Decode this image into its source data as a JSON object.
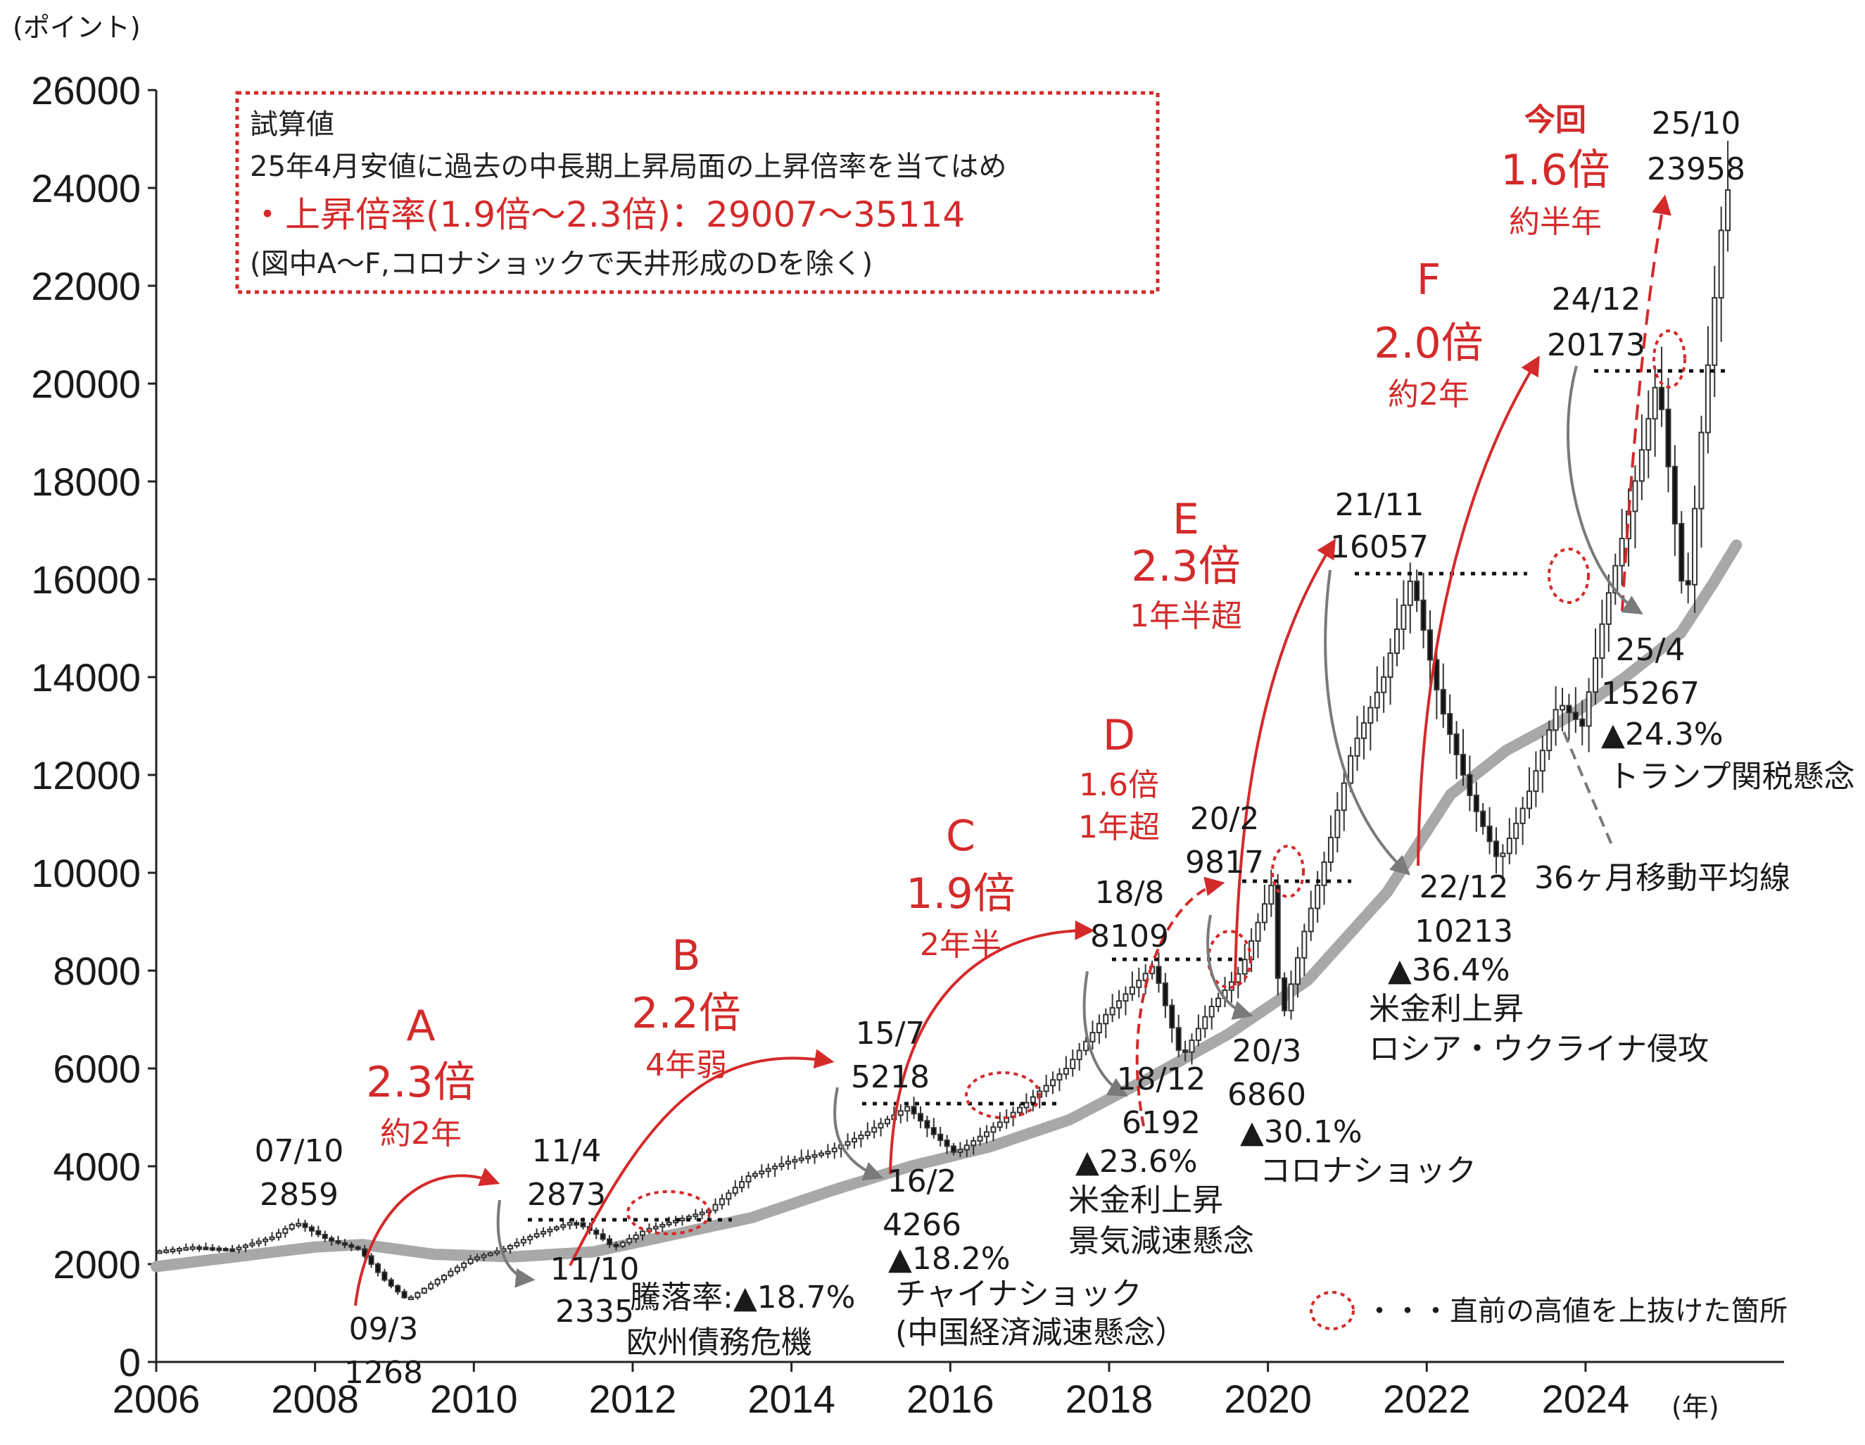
{
  "colors": {
    "accent_red": "#d42a2a",
    "ma_gray": "#a8a8a8",
    "arrow_gray": "#7a7a7a",
    "candle_black": "#111111"
  },
  "chart_data": {
    "type": "candlestick",
    "ylabel": "(ポイント)",
    "xlabel": "(年)",
    "ylim": [
      0,
      26000
    ],
    "xlim": [
      2006,
      2026.5
    ],
    "y_ticks": [
      0,
      2000,
      4000,
      6000,
      8000,
      10000,
      12000,
      14000,
      16000,
      18000,
      20000,
      22000,
      24000,
      26000
    ],
    "x_ticks": [
      2006,
      2008,
      2010,
      2012,
      2014,
      2016,
      2018,
      2020,
      2022,
      2024
    ],
    "grid": false,
    "series": [
      {
        "name": "",
        "kind": "price",
        "points": [
          {
            "x": 2006.0,
            "y": 2250
          },
          {
            "x": 2006.5,
            "y": 2350
          },
          {
            "x": 2007.0,
            "y": 2300
          },
          {
            "x": 2007.5,
            "y": 2550
          },
          {
            "x": 2007.8,
            "y": 2859
          },
          {
            "x": 2008.2,
            "y": 2500
          },
          {
            "x": 2008.6,
            "y": 2300
          },
          {
            "x": 2008.9,
            "y": 1700
          },
          {
            "x": 2009.2,
            "y": 1268
          },
          {
            "x": 2009.6,
            "y": 1700
          },
          {
            "x": 2010.0,
            "y": 2100
          },
          {
            "x": 2010.4,
            "y": 2300
          },
          {
            "x": 2010.8,
            "y": 2600
          },
          {
            "x": 2011.3,
            "y": 2873
          },
          {
            "x": 2011.6,
            "y": 2600
          },
          {
            "x": 2011.8,
            "y": 2335
          },
          {
            "x": 2012.2,
            "y": 2700
          },
          {
            "x": 2012.6,
            "y": 2900
          },
          {
            "x": 2013.0,
            "y": 3100
          },
          {
            "x": 2013.5,
            "y": 3800
          },
          {
            "x": 2014.0,
            "y": 4100
          },
          {
            "x": 2014.5,
            "y": 4300
          },
          {
            "x": 2015.0,
            "y": 4700
          },
          {
            "x": 2015.5,
            "y": 5218
          },
          {
            "x": 2015.8,
            "y": 4700
          },
          {
            "x": 2016.1,
            "y": 4266
          },
          {
            "x": 2016.5,
            "y": 4700
          },
          {
            "x": 2017.0,
            "y": 5300
          },
          {
            "x": 2017.5,
            "y": 6000
          },
          {
            "x": 2018.0,
            "y": 7100
          },
          {
            "x": 2018.6,
            "y": 8109
          },
          {
            "x": 2018.95,
            "y": 6192
          },
          {
            "x": 2019.3,
            "y": 7200
          },
          {
            "x": 2019.7,
            "y": 8000
          },
          {
            "x": 2020.1,
            "y": 9817
          },
          {
            "x": 2020.2,
            "y": 6860
          },
          {
            "x": 2020.5,
            "y": 8800
          },
          {
            "x": 2020.8,
            "y": 10500
          },
          {
            "x": 2021.1,
            "y": 12500
          },
          {
            "x": 2021.5,
            "y": 14000
          },
          {
            "x": 2021.85,
            "y": 16057
          },
          {
            "x": 2022.2,
            "y": 13500
          },
          {
            "x": 2022.6,
            "y": 11500
          },
          {
            "x": 2022.95,
            "y": 10213
          },
          {
            "x": 2023.3,
            "y": 11500
          },
          {
            "x": 2023.7,
            "y": 13500
          },
          {
            "x": 2024.0,
            "y": 13000
          },
          {
            "x": 2024.3,
            "y": 15500
          },
          {
            "x": 2024.6,
            "y": 17500
          },
          {
            "x": 2024.95,
            "y": 20173
          },
          {
            "x": 2025.3,
            "y": 15267
          },
          {
            "x": 2025.5,
            "y": 19000
          },
          {
            "x": 2025.8,
            "y": 23958
          }
        ]
      },
      {
        "name": "36ヶ月移動平均線",
        "kind": "ma",
        "points": [
          {
            "x": 2006.0,
            "y": 1950
          },
          {
            "x": 2007.0,
            "y": 2150
          },
          {
            "x": 2008.0,
            "y": 2350
          },
          {
            "x": 2008.6,
            "y": 2400
          },
          {
            "x": 2009.5,
            "y": 2200
          },
          {
            "x": 2010.5,
            "y": 2150
          },
          {
            "x": 2011.5,
            "y": 2250
          },
          {
            "x": 2012.5,
            "y": 2600
          },
          {
            "x": 2013.5,
            "y": 2950
          },
          {
            "x": 2014.5,
            "y": 3500
          },
          {
            "x": 2015.5,
            "y": 4000
          },
          {
            "x": 2016.5,
            "y": 4400
          },
          {
            "x": 2017.5,
            "y": 4950
          },
          {
            "x": 2018.5,
            "y": 5800
          },
          {
            "x": 2019.5,
            "y": 6700
          },
          {
            "x": 2020.5,
            "y": 7800
          },
          {
            "x": 2021.5,
            "y": 9600
          },
          {
            "x": 2022.3,
            "y": 11600
          },
          {
            "x": 2023.0,
            "y": 12500
          },
          {
            "x": 2023.8,
            "y": 13200
          },
          {
            "x": 2024.5,
            "y": 14000
          },
          {
            "x": 2025.2,
            "y": 14900
          },
          {
            "x": 2025.6,
            "y": 15900
          },
          {
            "x": 2025.9,
            "y": 16700
          }
        ]
      }
    ],
    "phases": [
      {
        "label": "A",
        "ratio": "2.3倍",
        "duration": "約2年"
      },
      {
        "label": "B",
        "ratio": "2.2倍",
        "duration": "4年弱"
      },
      {
        "label": "C",
        "ratio": "1.9倍",
        "duration": "2年半"
      },
      {
        "label": "D",
        "ratio": "1.6倍",
        "duration": "1年超"
      },
      {
        "label": "E",
        "ratio": "2.3倍",
        "duration": "1年半超"
      },
      {
        "label": "F",
        "ratio": "2.0倍",
        "duration": "約2年"
      },
      {
        "label": "今回",
        "ratio": "1.6倍",
        "duration": "約半年"
      }
    ],
    "peaks": [
      {
        "date": "07/10",
        "value": "2859"
      },
      {
        "date": "11/4",
        "value": "2873"
      },
      {
        "date": "15/7",
        "value": "5218"
      },
      {
        "date": "18/8",
        "value": "8109"
      },
      {
        "date": "20/2",
        "value": "9817"
      },
      {
        "date": "21/11",
        "value": "16057"
      },
      {
        "date": "24/12",
        "value": "20173"
      },
      {
        "date": "25/10",
        "value": "23958"
      }
    ],
    "troughs": [
      {
        "date": "09/3",
        "value": "1268"
      },
      {
        "date": "11/10",
        "value": "2335",
        "label": "騰落率:▲18.7%",
        "cause": "欧州債務危機"
      },
      {
        "date": "16/2",
        "value": "4266",
        "pct": "▲18.2%",
        "cause1": "チャイナショック",
        "cause2": "(中国経済減速懸念）"
      },
      {
        "date": "18/12",
        "value": "6192",
        "pct": "▲23.6%",
        "cause1": "米金利上昇",
        "cause2": "景気減速懸念"
      },
      {
        "date": "20/3",
        "value": "6860",
        "pct": "▲30.1%",
        "cause1": "コロナショック"
      },
      {
        "date": "22/12",
        "value": "10213",
        "pct": "▲36.4%",
        "cause1": "米金利上昇",
        "cause2": "ロシア・ウクライナ侵攻"
      },
      {
        "date": "25/4",
        "value": "15267",
        "pct": "▲24.3%",
        "cause1": "トランプ関税懸念"
      }
    ],
    "ma_label": "36ヶ月移動平均線",
    "legend": "・・・直前の高値を上抜けた箇所",
    "info_box": {
      "line1": "試算値",
      "line2": "25年4月安値に過去の中長期上昇局面の上昇倍率を当てはめ",
      "line3": "・上昇倍率(1.9倍～2.3倍)：29007～35114",
      "line4": "(図中A～F,コロナショックで天井形成のDを除く)"
    }
  }
}
